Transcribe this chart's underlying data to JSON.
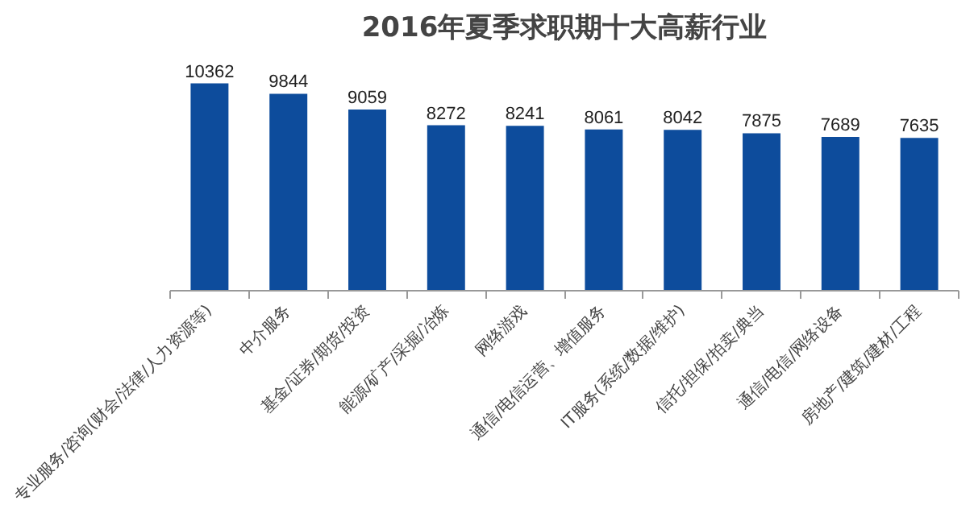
{
  "chart_data": {
    "type": "bar",
    "title": "2016年夏季求职期十大高薪行业",
    "categories": [
      "专业服务/咨询(财会/法律/人力资源等)",
      "中介服务",
      "基金/证券/期货/投资",
      "能源/矿产/采掘/冶炼",
      "网络游戏",
      "通信/电信运营、增值服务",
      "IT服务(系统/数据/维护)",
      "信托/担保/拍卖/典当",
      "通信/电信/网络设备",
      "房地产/建筑/建材/工程"
    ],
    "values": [
      10362,
      9844,
      9059,
      8272,
      8241,
      8061,
      8042,
      7875,
      7689,
      7635
    ],
    "color": "#0d4c9c",
    "data_labels": true,
    "grid": false
  }
}
